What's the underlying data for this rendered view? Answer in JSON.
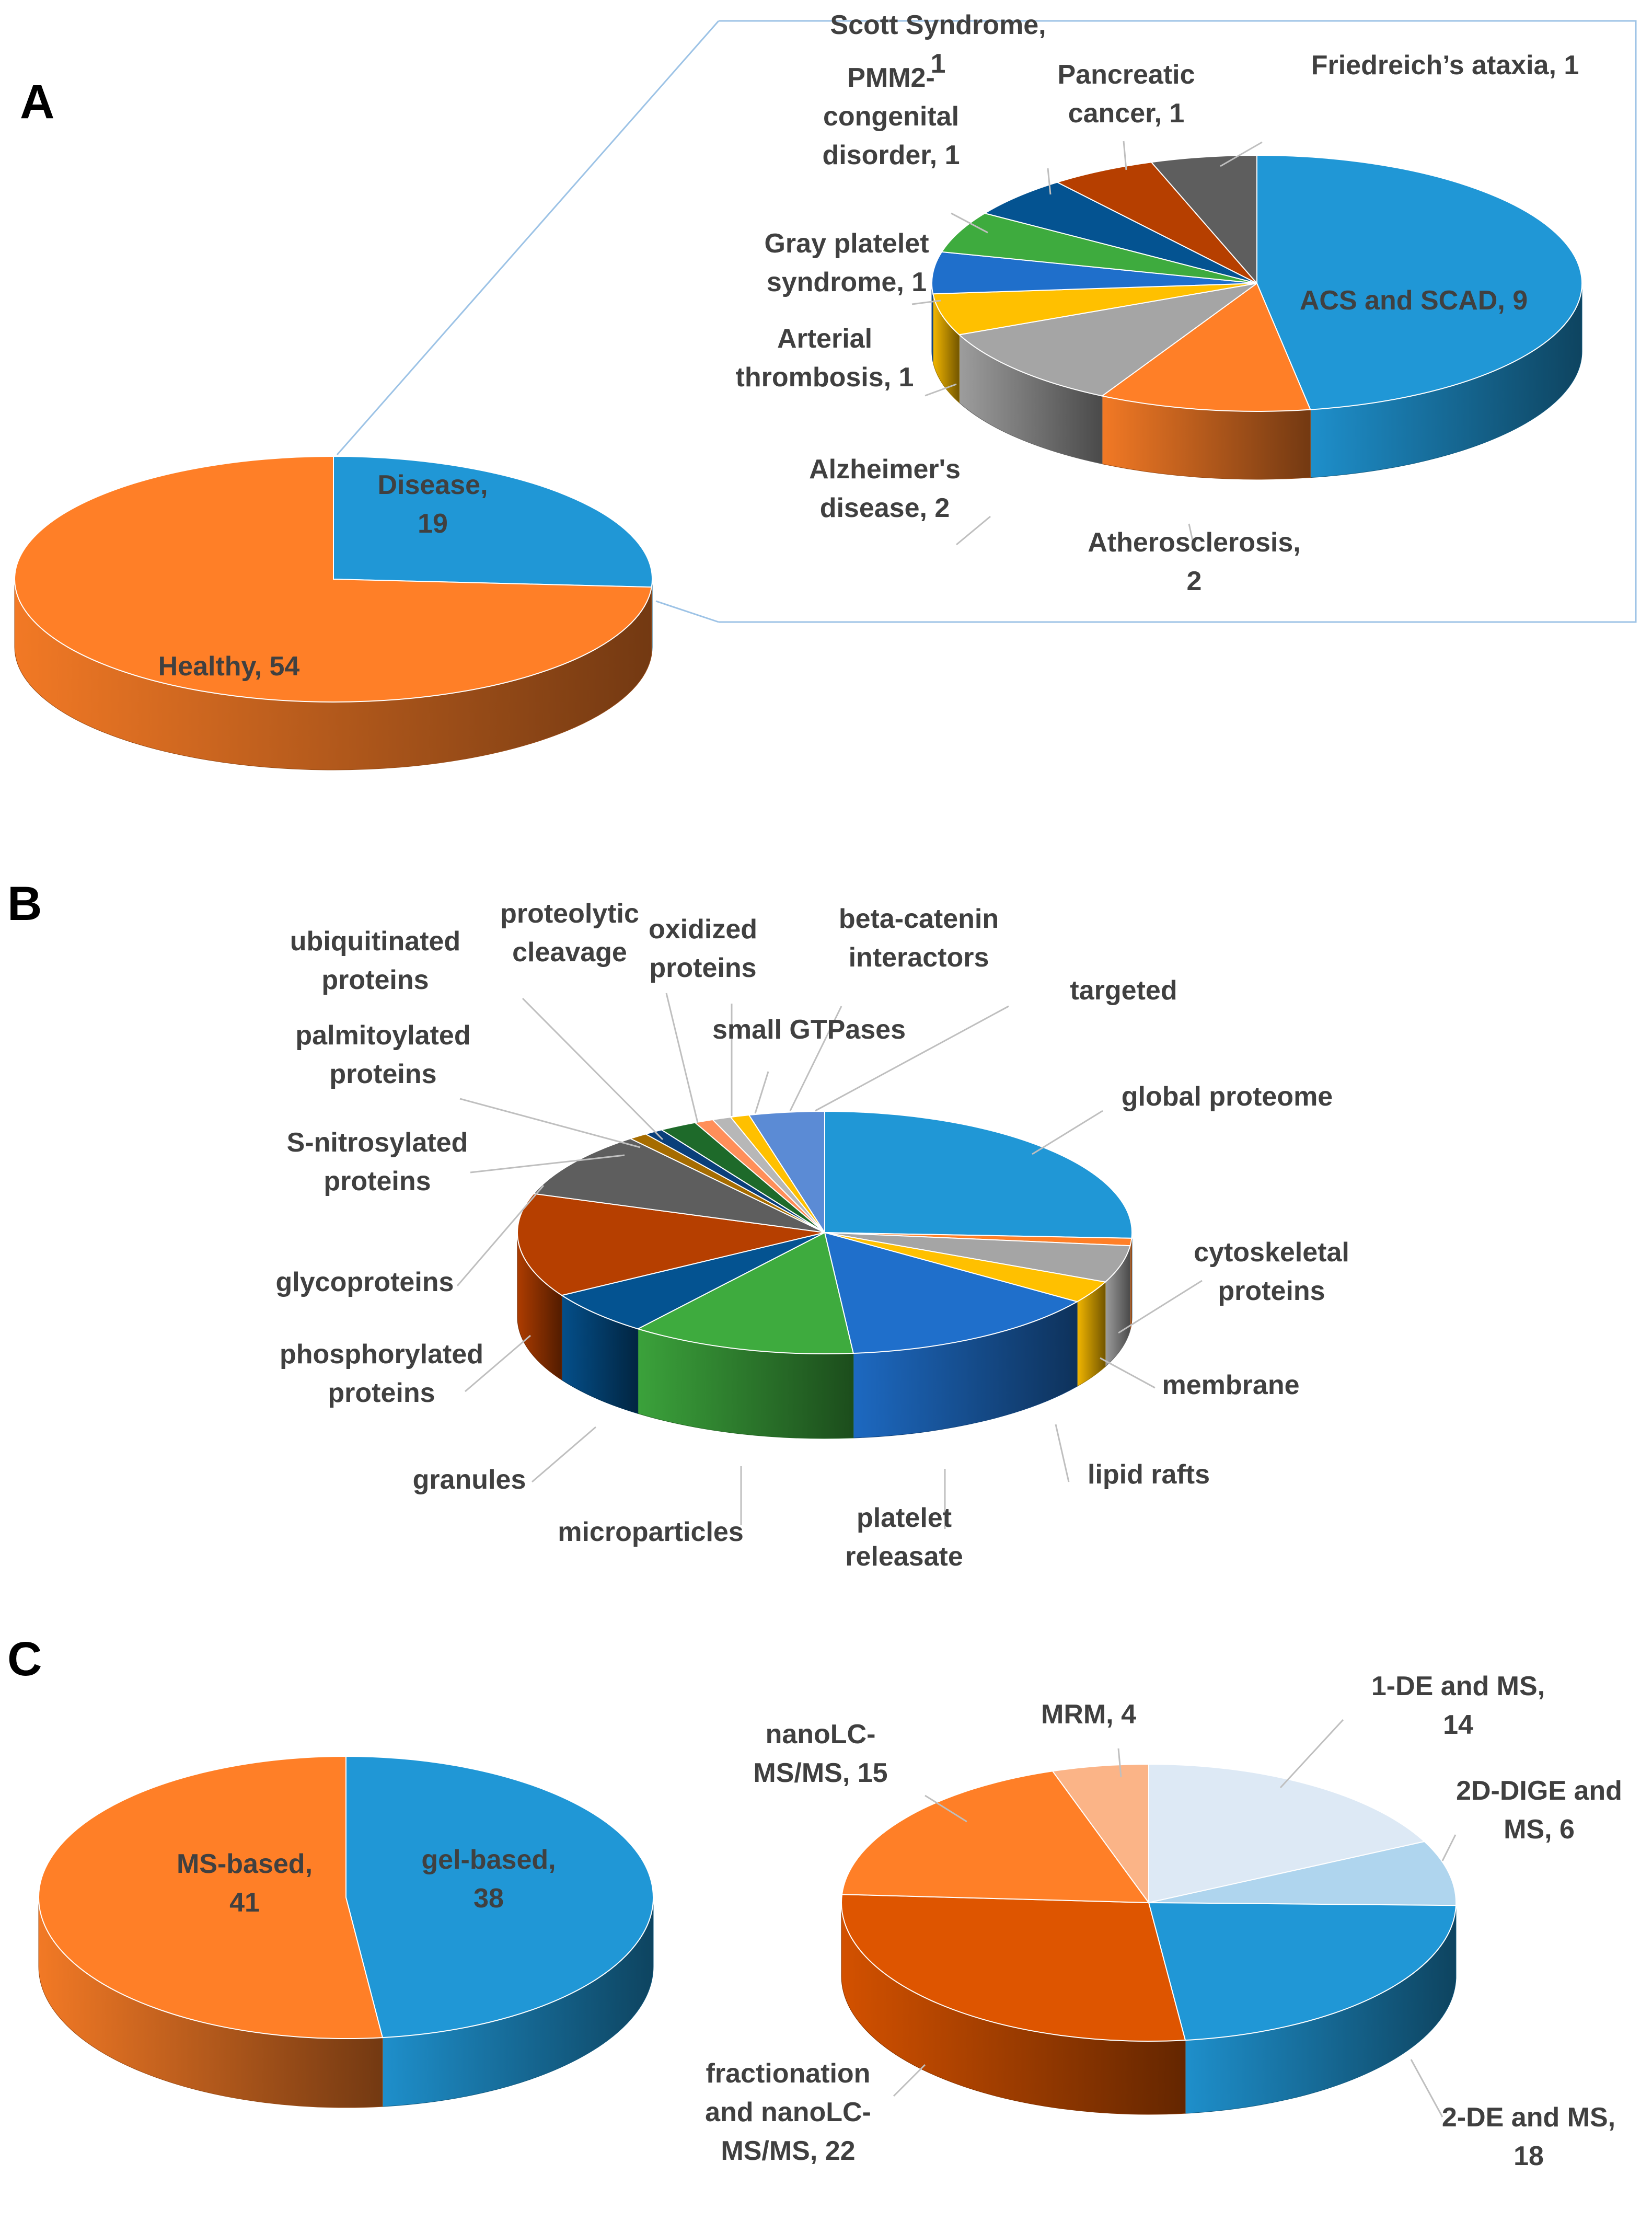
{
  "panels": [
    {
      "letter": "A"
    },
    {
      "letter": "B"
    },
    {
      "letter": "C"
    }
  ],
  "chart_data": [
    {
      "type": "pie",
      "id": "A-overview",
      "title": "",
      "slices": [
        {
          "label": "Disease",
          "value": 19,
          "text": [
            "Disease,",
            "19"
          ],
          "color": "#2097d6"
        },
        {
          "label": "Healthy",
          "value": 54,
          "text": [
            "Healthy, 54"
          ],
          "color": "#ff7f27"
        }
      ]
    },
    {
      "type": "pie",
      "id": "A-disease",
      "title": "",
      "slices": [
        {
          "label": "ACS and SCAD",
          "value": 9,
          "text": [
            "ACS and SCAD, 9"
          ],
          "color": "#2097d6"
        },
        {
          "label": "Atherosclerosis",
          "value": 2,
          "text": [
            "Atherosclerosis,",
            "2"
          ],
          "color": "#ff7f27"
        },
        {
          "label": "Alzheimer's disease",
          "value": 2,
          "text": [
            "Alzheimer's",
            "disease, 2"
          ],
          "color": "#a5a5a5"
        },
        {
          "label": "Arterial thrombosis",
          "value": 1,
          "text": [
            "Arterial",
            "thrombosis, 1"
          ],
          "color": "#ffc000"
        },
        {
          "label": "Gray platelet syndrome",
          "value": 1,
          "text": [
            "Gray platelet",
            "syndrome, 1"
          ],
          "color": "#1f6fcb"
        },
        {
          "label": "PMM2-congenital disorder",
          "value": 1,
          "text": [
            "PMM2-",
            "congenital",
            "disorder, 1"
          ],
          "color": "#3eab3e"
        },
        {
          "label": "Scott Syndrome",
          "value": 1,
          "text": [
            "Scott Syndrome,",
            "1"
          ],
          "color": "#045391"
        },
        {
          "label": "Pancreatic cancer",
          "value": 1,
          "text": [
            "Pancreatic",
            "cancer, 1"
          ],
          "color": "#b63f00"
        },
        {
          "label": "Friedreich's ataxia",
          "value": 1,
          "text": [
            "Friedreich’s ataxia, 1"
          ],
          "color": "#5e5e5e"
        }
      ]
    },
    {
      "type": "pie",
      "id": "B",
      "title": "",
      "slices": [
        {
          "label": "global proteome",
          "value": 26,
          "text": [
            "global proteome"
          ],
          "color": "#2097d6"
        },
        {
          "label": "targeted (2)",
          "value": 1,
          "text": [],
          "color": "#ff7f27"
        },
        {
          "label": "cytoskeletal proteins",
          "value": 5,
          "text": [
            "cytoskeletal",
            "proteins"
          ],
          "color": "#a5a5a5"
        },
        {
          "label": "membrane",
          "value": 3,
          "text": [
            "membrane"
          ],
          "color": "#ffc000"
        },
        {
          "label": "lipid rafts",
          "value": 0,
          "text": [
            "lipid rafts"
          ],
          "color": "#ffd966"
        },
        {
          "label": "platelet releasate",
          "value": 14,
          "text": [
            "platelet",
            "releasate"
          ],
          "color": "#1f6fcb"
        },
        {
          "label": "microparticles",
          "value": 12,
          "text": [
            "microparticles"
          ],
          "color": "#3eab3e"
        },
        {
          "label": "granules",
          "value": 6,
          "text": [
            "granules"
          ],
          "color": "#045391"
        },
        {
          "label": "phosphorylated proteins",
          "value": 14,
          "text": [
            "phosphorylated",
            "proteins"
          ],
          "color": "#b63f00"
        },
        {
          "label": "glycoproteins",
          "value": 9,
          "text": [
            "glycoproteins"
          ],
          "color": "#5e5e5e"
        },
        {
          "label": "S-nitrosylated proteins",
          "value": 1,
          "text": [
            "S-nitrosylated",
            "proteins"
          ],
          "color": "#a66c00"
        },
        {
          "label": "palmitoylated proteins",
          "value": 1,
          "text": [
            "palmitoylated",
            "proteins"
          ],
          "color": "#0a3f7a"
        },
        {
          "label": "ubiquitinated proteins",
          "value": 2,
          "text": [
            "ubiquitinated",
            "proteins"
          ],
          "color": "#1e6a2a"
        },
        {
          "label": "proteolytic cleavage",
          "value": 1,
          "text": [
            "proteolytic",
            "cleavage"
          ],
          "color": "#ff8f5a"
        },
        {
          "label": "oxidized proteins",
          "value": 1,
          "text": [
            "oxidized",
            "proteins"
          ],
          "color": "#b7b7b7"
        },
        {
          "label": "small GTPases",
          "value": 1,
          "text": [
            "small GTPases"
          ],
          "color": "#ffc000"
        },
        {
          "label": "beta-catenin interactors",
          "value": 0,
          "text": [
            "beta-catenin",
            "interactors"
          ],
          "color": "#b0c8e8"
        },
        {
          "label": "targeted",
          "value": 4,
          "text": [
            "targeted"
          ],
          "color": "#5b8bd5"
        }
      ]
    },
    {
      "type": "pie",
      "id": "C-overview",
      "title": "",
      "slices": [
        {
          "label": "gel-based",
          "value": 38,
          "text": [
            "gel-based,",
            "38"
          ],
          "color": "#2097d6"
        },
        {
          "label": "MS-based",
          "value": 41,
          "text": [
            "MS-based,",
            "41"
          ],
          "color": "#ff7f27"
        }
      ]
    },
    {
      "type": "pie",
      "id": "C-methods",
      "title": "",
      "slices": [
        {
          "label": "1-DE and MS",
          "value": 14,
          "text": [
            "1-DE and MS,",
            "14"
          ],
          "color": "#dde9f5"
        },
        {
          "label": "2D-DIGE and MS",
          "value": 6,
          "text": [
            "2D-DIGE and",
            "MS, 6"
          ],
          "color": "#afd5ee"
        },
        {
          "label": "2-DE and MS",
          "value": 18,
          "text": [
            "2-DE and MS,",
            "18"
          ],
          "color": "#2097d6"
        },
        {
          "label": "fractionation and nanoLC-MS/MS",
          "value": 22,
          "text": [
            "fractionation",
            "and nanoLC-",
            "MS/MS, 22"
          ],
          "color": "#de5500"
        },
        {
          "label": "nanoLC-MS/MS",
          "value": 15,
          "text": [
            "nanoLC-",
            "MS/MS, 15"
          ],
          "color": "#ff7f27"
        },
        {
          "label": "MRM",
          "value": 4,
          "text": [
            "MRM, 4"
          ],
          "color": "#fbb487"
        }
      ]
    }
  ]
}
